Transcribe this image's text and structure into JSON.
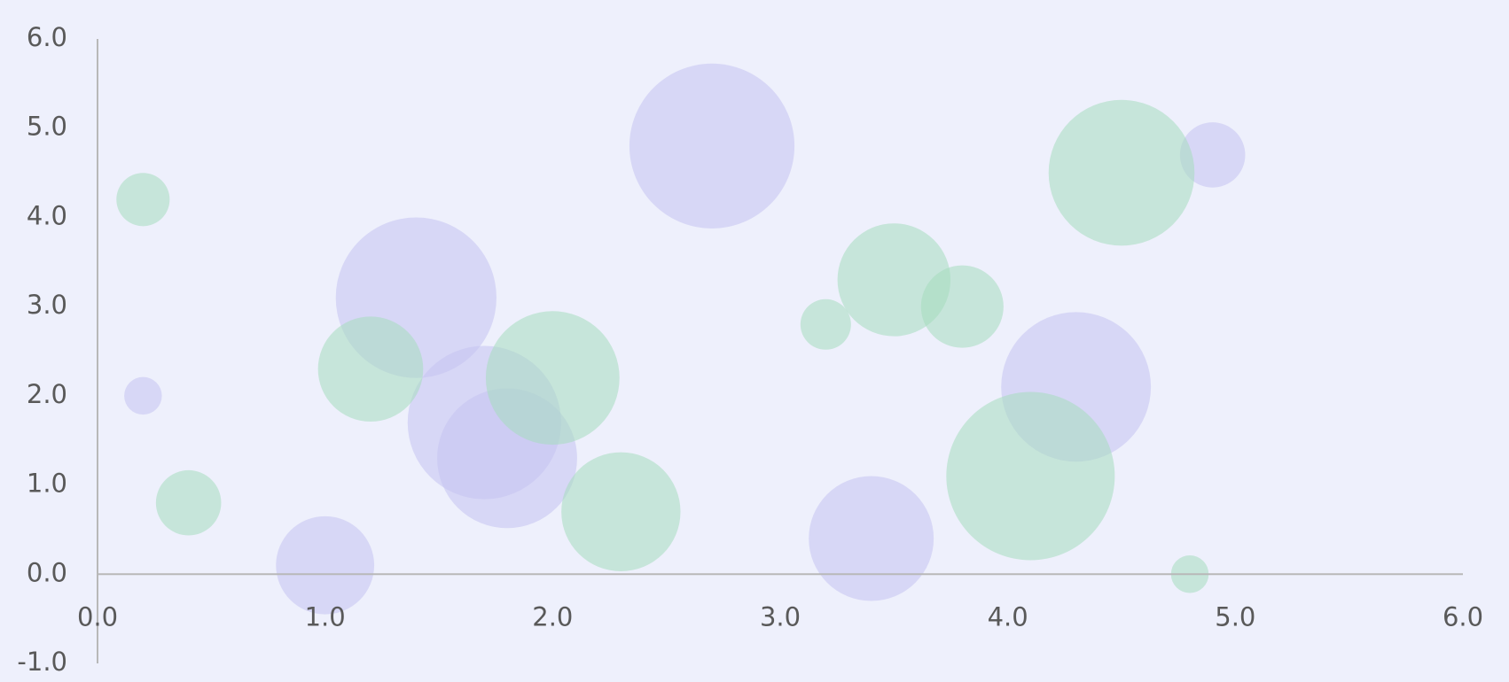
{
  "chart_data": {
    "type": "bubble",
    "xlim": [
      0,
      6
    ],
    "ylim": [
      -1,
      6
    ],
    "xticks": [
      {
        "value": 0,
        "label": "0.0"
      },
      {
        "value": 1,
        "label": "1.0"
      },
      {
        "value": 2,
        "label": "2.0"
      },
      {
        "value": 3,
        "label": "3.0"
      },
      {
        "value": 4,
        "label": "4.0"
      },
      {
        "value": 5,
        "label": "5.0"
      },
      {
        "value": 6,
        "label": "6.0"
      }
    ],
    "yticks": [
      {
        "value": -1,
        "label": "-1.0"
      },
      {
        "value": 0,
        "label": "0.0"
      },
      {
        "value": 1,
        "label": "1.0"
      },
      {
        "value": 2,
        "label": "2.0"
      },
      {
        "value": 3,
        "label": "3.0"
      },
      {
        "value": 4,
        "label": "4.0"
      },
      {
        "value": 5,
        "label": "5.0"
      },
      {
        "value": 6,
        "label": "6.0"
      }
    ],
    "grid": false,
    "series": [
      {
        "color": "#c4c2f0",
        "x": [
          0.2,
          1.0,
          1.4,
          1.7,
          1.8,
          2.7,
          3.4,
          4.3,
          4.9
        ],
        "values": [
          2.0,
          0.1,
          3.1,
          1.7,
          1.3,
          4.8,
          0.4,
          2.1,
          4.7
        ],
        "sizes": [
          0.5,
          3.4,
          9.1,
          8.3,
          6.9,
          9.6,
          5.5,
          7.9,
          1.5
        ]
      },
      {
        "color": "#a6dcbd",
        "x": [
          0.2,
          0.4,
          1.2,
          2.0,
          2.3,
          3.2,
          3.5,
          3.8,
          4.1,
          4.5,
          4.8
        ],
        "values": [
          4.2,
          0.8,
          2.3,
          2.2,
          0.7,
          2.8,
          3.3,
          3.0,
          1.1,
          4.5,
          0.0
        ],
        "sizes": [
          1.0,
          1.5,
          3.9,
          6.3,
          5.0,
          0.9,
          4.5,
          2.4,
          10.0,
          7.5,
          0.5
        ]
      }
    ]
  }
}
